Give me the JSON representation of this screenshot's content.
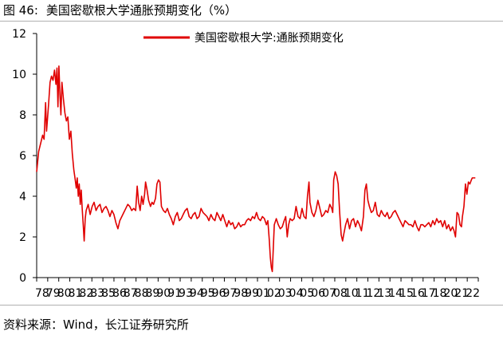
{
  "figure": {
    "number": "图 46:",
    "title": "美国密歇根大学通胀预期变化（%）",
    "source": "资料来源：Wind，长江证券研究所"
  },
  "colors": {
    "series": "#e00000",
    "axis": "#000000",
    "rule": "#b0b0b0"
  },
  "chart_data": {
    "type": "line",
    "title": "",
    "xlabel": "",
    "ylabel": "",
    "x_tick_labels": [
      "78",
      "79",
      "80",
      "81",
      "82",
      "83",
      "85",
      "86",
      "87",
      "88",
      "89",
      "90",
      "91",
      "93",
      "94",
      "95",
      "96",
      "97",
      "98",
      "99",
      "01",
      "02",
      "03",
      "04",
      "05",
      "06",
      "07",
      "08",
      "10",
      "11",
      "12",
      "13",
      "14",
      "15",
      "16",
      "17",
      "18",
      "20",
      "21",
      "22"
    ],
    "y_ticks": [
      0,
      2,
      4,
      6,
      8,
      10,
      12
    ],
    "ylim": [
      0,
      12
    ],
    "xlim": [
      1978.0,
      2022.6
    ],
    "grid": false,
    "legend_position": "top-center",
    "series": [
      {
        "name": "美国密歇根大学:通胀预期变化",
        "color": "#e00000",
        "points": [
          [
            1978.0,
            5.2
          ],
          [
            1978.2,
            6.2
          ],
          [
            1978.4,
            6.6
          ],
          [
            1978.6,
            7.0
          ],
          [
            1978.75,
            6.8
          ],
          [
            1978.9,
            8.6
          ],
          [
            1979.0,
            7.2
          ],
          [
            1979.2,
            8.5
          ],
          [
            1979.35,
            9.6
          ],
          [
            1979.5,
            9.9
          ],
          [
            1979.65,
            9.7
          ],
          [
            1979.8,
            10.2
          ],
          [
            1979.95,
            9.5
          ],
          [
            1980.05,
            10.3
          ],
          [
            1980.15,
            8.4
          ],
          [
            1980.25,
            10.4
          ],
          [
            1980.35,
            9.0
          ],
          [
            1980.45,
            8.0
          ],
          [
            1980.55,
            9.6
          ],
          [
            1980.7,
            8.8
          ],
          [
            1980.85,
            8.1
          ],
          [
            1981.0,
            7.7
          ],
          [
            1981.15,
            7.9
          ],
          [
            1981.3,
            6.8
          ],
          [
            1981.45,
            7.2
          ],
          [
            1981.6,
            6.1
          ],
          [
            1981.75,
            5.3
          ],
          [
            1981.9,
            4.8
          ],
          [
            1982.0,
            4.4
          ],
          [
            1982.1,
            4.9
          ],
          [
            1982.2,
            4.0
          ],
          [
            1982.3,
            4.6
          ],
          [
            1982.4,
            3.6
          ],
          [
            1982.5,
            4.3
          ],
          [
            1982.6,
            3.4
          ],
          [
            1982.7,
            2.6
          ],
          [
            1982.8,
            1.8
          ],
          [
            1982.9,
            2.9
          ],
          [
            1983.0,
            3.3
          ],
          [
            1983.2,
            3.6
          ],
          [
            1983.4,
            3.1
          ],
          [
            1983.6,
            3.5
          ],
          [
            1983.8,
            3.7
          ],
          [
            1984.0,
            3.3
          ],
          [
            1984.2,
            3.5
          ],
          [
            1984.4,
            3.6
          ],
          [
            1984.6,
            3.2
          ],
          [
            1984.8,
            3.4
          ],
          [
            1985.0,
            3.5
          ],
          [
            1985.2,
            3.3
          ],
          [
            1985.4,
            3.0
          ],
          [
            1985.6,
            3.3
          ],
          [
            1985.8,
            3.1
          ],
          [
            1986.0,
            2.7
          ],
          [
            1986.2,
            2.4
          ],
          [
            1986.4,
            2.8
          ],
          [
            1986.6,
            3.0
          ],
          [
            1986.8,
            3.2
          ],
          [
            1987.0,
            3.4
          ],
          [
            1987.2,
            3.6
          ],
          [
            1987.4,
            3.5
          ],
          [
            1987.6,
            3.3
          ],
          [
            1987.8,
            3.4
          ],
          [
            1988.0,
            3.3
          ],
          [
            1988.15,
            4.5
          ],
          [
            1988.3,
            3.7
          ],
          [
            1988.45,
            3.3
          ],
          [
            1988.6,
            4.0
          ],
          [
            1988.75,
            3.6
          ],
          [
            1988.9,
            4.1
          ],
          [
            1989.0,
            4.7
          ],
          [
            1989.15,
            4.3
          ],
          [
            1989.3,
            3.8
          ],
          [
            1989.5,
            3.5
          ],
          [
            1989.65,
            3.7
          ],
          [
            1989.8,
            3.6
          ],
          [
            1990.0,
            3.9
          ],
          [
            1990.15,
            4.6
          ],
          [
            1990.3,
            4.8
          ],
          [
            1990.45,
            4.7
          ],
          [
            1990.6,
            3.5
          ],
          [
            1990.8,
            3.3
          ],
          [
            1991.0,
            3.2
          ],
          [
            1991.2,
            3.4
          ],
          [
            1991.4,
            3.1
          ],
          [
            1991.6,
            2.9
          ],
          [
            1991.8,
            2.6
          ],
          [
            1992.0,
            3.0
          ],
          [
            1992.2,
            3.2
          ],
          [
            1992.4,
            2.8
          ],
          [
            1992.6,
            2.9
          ],
          [
            1992.8,
            3.1
          ],
          [
            1993.0,
            3.3
          ],
          [
            1993.2,
            3.4
          ],
          [
            1993.4,
            3.0
          ],
          [
            1993.6,
            2.9
          ],
          [
            1993.8,
            3.1
          ],
          [
            1994.0,
            3.2
          ],
          [
            1994.2,
            2.9
          ],
          [
            1994.4,
            3.0
          ],
          [
            1994.6,
            3.4
          ],
          [
            1994.8,
            3.2
          ],
          [
            1995.0,
            3.1
          ],
          [
            1995.2,
            3.0
          ],
          [
            1995.4,
            2.8
          ],
          [
            1995.6,
            3.1
          ],
          [
            1995.8,
            2.9
          ],
          [
            1996.0,
            2.8
          ],
          [
            1996.2,
            3.2
          ],
          [
            1996.4,
            3.0
          ],
          [
            1996.6,
            2.8
          ],
          [
            1996.8,
            3.1
          ],
          [
            1997.0,
            2.8
          ],
          [
            1997.2,
            2.5
          ],
          [
            1997.4,
            2.8
          ],
          [
            1997.6,
            2.6
          ],
          [
            1997.8,
            2.7
          ],
          [
            1998.0,
            2.4
          ],
          [
            1998.2,
            2.5
          ],
          [
            1998.4,
            2.7
          ],
          [
            1998.6,
            2.5
          ],
          [
            1998.8,
            2.6
          ],
          [
            1999.0,
            2.6
          ],
          [
            1999.2,
            2.8
          ],
          [
            1999.4,
            2.9
          ],
          [
            1999.6,
            2.8
          ],
          [
            1999.8,
            3.0
          ],
          [
            2000.0,
            2.9
          ],
          [
            2000.2,
            3.2
          ],
          [
            2000.4,
            2.9
          ],
          [
            2000.6,
            2.8
          ],
          [
            2000.8,
            3.0
          ],
          [
            2001.0,
            2.9
          ],
          [
            2001.2,
            2.6
          ],
          [
            2001.35,
            2.8
          ],
          [
            2001.5,
            1.8
          ],
          [
            2001.6,
            1.0
          ],
          [
            2001.7,
            0.5
          ],
          [
            2001.8,
            0.3
          ],
          [
            2001.9,
            1.5
          ],
          [
            2002.0,
            2.6
          ],
          [
            2002.2,
            2.9
          ],
          [
            2002.4,
            2.6
          ],
          [
            2002.6,
            2.4
          ],
          [
            2002.8,
            2.5
          ],
          [
            2003.0,
            2.8
          ],
          [
            2003.15,
            3.0
          ],
          [
            2003.3,
            2.0
          ],
          [
            2003.45,
            2.6
          ],
          [
            2003.6,
            2.9
          ],
          [
            2003.8,
            2.8
          ],
          [
            2004.0,
            2.9
          ],
          [
            2004.2,
            3.5
          ],
          [
            2004.4,
            3.0
          ],
          [
            2004.6,
            2.9
          ],
          [
            2004.8,
            3.4
          ],
          [
            2005.0,
            3.0
          ],
          [
            2005.2,
            2.9
          ],
          [
            2005.35,
            4.0
          ],
          [
            2005.5,
            4.7
          ],
          [
            2005.6,
            3.7
          ],
          [
            2005.8,
            3.2
          ],
          [
            2006.0,
            3.0
          ],
          [
            2006.2,
            3.3
          ],
          [
            2006.4,
            3.8
          ],
          [
            2006.6,
            3.4
          ],
          [
            2006.8,
            3.0
          ],
          [
            2007.0,
            3.1
          ],
          [
            2007.2,
            3.3
          ],
          [
            2007.4,
            3.2
          ],
          [
            2007.6,
            3.6
          ],
          [
            2007.8,
            3.4
          ],
          [
            2007.9,
            3.2
          ],
          [
            2008.0,
            4.8
          ],
          [
            2008.15,
            5.2
          ],
          [
            2008.3,
            5.0
          ],
          [
            2008.45,
            4.6
          ],
          [
            2008.6,
            3.2
          ],
          [
            2008.75,
            2.1
          ],
          [
            2008.9,
            1.8
          ],
          [
            2009.0,
            2.1
          ],
          [
            2009.2,
            2.6
          ],
          [
            2009.4,
            2.9
          ],
          [
            2009.6,
            2.4
          ],
          [
            2009.8,
            2.8
          ],
          [
            2010.0,
            2.9
          ],
          [
            2010.2,
            2.5
          ],
          [
            2010.4,
            2.8
          ],
          [
            2010.6,
            2.6
          ],
          [
            2010.8,
            2.3
          ],
          [
            2011.0,
            3.0
          ],
          [
            2011.15,
            4.3
          ],
          [
            2011.3,
            4.6
          ],
          [
            2011.45,
            3.8
          ],
          [
            2011.6,
            3.5
          ],
          [
            2011.8,
            3.2
          ],
          [
            2012.0,
            3.3
          ],
          [
            2012.2,
            3.7
          ],
          [
            2012.4,
            3.1
          ],
          [
            2012.6,
            3.0
          ],
          [
            2012.8,
            3.3
          ],
          [
            2013.0,
            3.1
          ],
          [
            2013.2,
            3.0
          ],
          [
            2013.4,
            3.2
          ],
          [
            2013.6,
            2.9
          ],
          [
            2013.8,
            3.0
          ],
          [
            2014.0,
            3.2
          ],
          [
            2014.2,
            3.3
          ],
          [
            2014.4,
            3.1
          ],
          [
            2014.6,
            2.9
          ],
          [
            2014.8,
            2.7
          ],
          [
            2015.0,
            2.5
          ],
          [
            2015.2,
            2.8
          ],
          [
            2015.4,
            2.7
          ],
          [
            2015.6,
            2.6
          ],
          [
            2015.8,
            2.6
          ],
          [
            2016.0,
            2.5
          ],
          [
            2016.2,
            2.8
          ],
          [
            2016.4,
            2.5
          ],
          [
            2016.6,
            2.3
          ],
          [
            2016.8,
            2.6
          ],
          [
            2017.0,
            2.6
          ],
          [
            2017.2,
            2.5
          ],
          [
            2017.4,
            2.6
          ],
          [
            2017.6,
            2.7
          ],
          [
            2017.8,
            2.5
          ],
          [
            2018.0,
            2.8
          ],
          [
            2018.2,
            2.6
          ],
          [
            2018.4,
            2.9
          ],
          [
            2018.6,
            2.7
          ],
          [
            2018.8,
            2.8
          ],
          [
            2019.0,
            2.5
          ],
          [
            2019.2,
            2.8
          ],
          [
            2019.4,
            2.4
          ],
          [
            2019.6,
            2.6
          ],
          [
            2019.8,
            2.3
          ],
          [
            2020.0,
            2.5
          ],
          [
            2020.15,
            2.3
          ],
          [
            2020.3,
            2.0
          ],
          [
            2020.45,
            3.2
          ],
          [
            2020.6,
            3.1
          ],
          [
            2020.75,
            2.6
          ],
          [
            2020.9,
            2.5
          ],
          [
            2021.0,
            3.0
          ],
          [
            2021.15,
            3.5
          ],
          [
            2021.3,
            4.6
          ],
          [
            2021.45,
            4.1
          ],
          [
            2021.6,
            4.7
          ],
          [
            2021.75,
            4.6
          ],
          [
            2021.9,
            4.8
          ],
          [
            2022.0,
            4.9
          ],
          [
            2022.15,
            4.9
          ],
          [
            2022.3,
            4.9
          ]
        ]
      }
    ]
  }
}
